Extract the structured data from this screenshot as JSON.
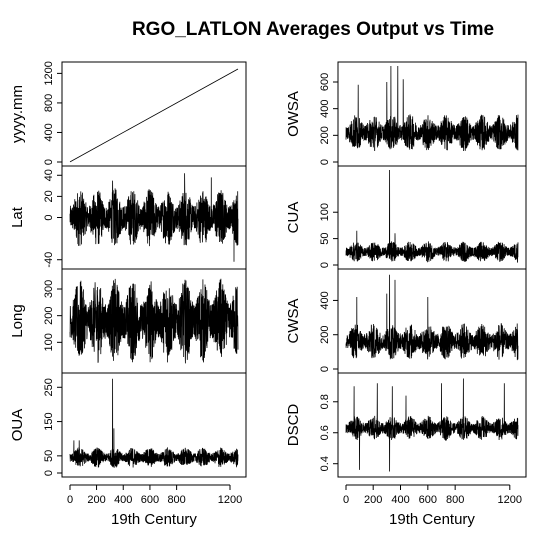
{
  "title": "RGO_LATLON Averages Output vs Time",
  "chart_data": [
    {
      "type": "line",
      "ylabel": "yyyy.mm",
      "x_range": [
        1,
        1260
      ],
      "ylim": [
        0,
        1300
      ],
      "yticks": [
        "0",
        "400",
        "800",
        "1200"
      ],
      "trend": "linear",
      "start": 1,
      "end": 1260
    },
    {
      "type": "line",
      "ylabel": "Lat",
      "x_range": [
        1,
        1260
      ],
      "ylim": [
        -45,
        45
      ],
      "yticks": [
        "-40",
        "0",
        "20",
        "40"
      ],
      "center": 0,
      "amp": 28,
      "spikes": [
        {
          "x": 320,
          "y": 35
        },
        {
          "x": 860,
          "y": 42
        },
        {
          "x": 1060,
          "y": 38
        },
        {
          "x": 1230,
          "y": -42
        }
      ]
    },
    {
      "type": "line",
      "ylabel": "Long",
      "x_range": [
        1,
        1260
      ],
      "ylim": [
        0,
        360
      ],
      "yticks": [
        "100",
        "200",
        "300"
      ],
      "center": 180,
      "amp": 160,
      "spikes": []
    },
    {
      "type": "line",
      "ylabel": "OUA",
      "x_range": [
        1,
        1260
      ],
      "xticks": [
        "0",
        "200",
        "400",
        "600",
        "800",
        "1200"
      ],
      "xlabel": "19th Century",
      "ylim": [
        0,
        280
      ],
      "yticks": [
        "0",
        "50",
        "150",
        "250"
      ],
      "center": 45,
      "amp": 30,
      "spikes": [
        {
          "x": 320,
          "y": 275
        },
        {
          "x": 330,
          "y": 130
        },
        {
          "x": 30,
          "y": 95
        },
        {
          "x": 70,
          "y": 95
        }
      ]
    },
    {
      "type": "line",
      "ylabel": "OWSA",
      "x_range": [
        1,
        1260
      ],
      "ylim": [
        0,
        720
      ],
      "yticks": [
        "0",
        "200",
        "400",
        "600"
      ],
      "center": 220,
      "amp": 140,
      "spikes": [
        {
          "x": 330,
          "y": 720
        },
        {
          "x": 380,
          "y": 720
        },
        {
          "x": 420,
          "y": 620
        },
        {
          "x": 300,
          "y": 600
        },
        {
          "x": 90,
          "y": 580
        }
      ]
    },
    {
      "type": "line",
      "ylabel": "CUA",
      "x_range": [
        1,
        1260
      ],
      "ylim": [
        0,
        180
      ],
      "yticks": [
        "0",
        "50",
        "100"
      ],
      "center": 25,
      "amp": 20,
      "spikes": [
        {
          "x": 320,
          "y": 180
        },
        {
          "x": 80,
          "y": 65
        },
        {
          "x": 360,
          "y": 60
        }
      ]
    },
    {
      "type": "line",
      "ylabel": "CWSA",
      "x_range": [
        1,
        1260
      ],
      "ylim": [
        0,
        560
      ],
      "yticks": [
        "0",
        "200",
        "400"
      ],
      "center": 160,
      "amp": 110,
      "spikes": [
        {
          "x": 320,
          "y": 550
        },
        {
          "x": 360,
          "y": 520
        },
        {
          "x": 300,
          "y": 440
        },
        {
          "x": 80,
          "y": 420
        },
        {
          "x": 600,
          "y": 420
        }
      ]
    },
    {
      "type": "line",
      "ylabel": "DSCD",
      "x_range": [
        1,
        1260
      ],
      "xticks": [
        "0",
        "200",
        "400",
        "600",
        "800",
        "1200"
      ],
      "xlabel": "19th Century",
      "ylim": [
        0.34,
        0.96
      ],
      "yticks": [
        "0.4",
        "0.6",
        "0.8"
      ],
      "center": 0.63,
      "amp": 0.08,
      "spikes": [
        {
          "x": 60,
          "y": 0.9
        },
        {
          "x": 100,
          "y": 0.36
        },
        {
          "x": 230,
          "y": 0.92
        },
        {
          "x": 340,
          "y": 0.9
        },
        {
          "x": 440,
          "y": 0.84
        },
        {
          "x": 700,
          "y": 0.92
        },
        {
          "x": 860,
          "y": 0.95
        },
        {
          "x": 1160,
          "y": 0.92
        },
        {
          "x": 320,
          "y": 0.35
        }
      ]
    }
  ]
}
